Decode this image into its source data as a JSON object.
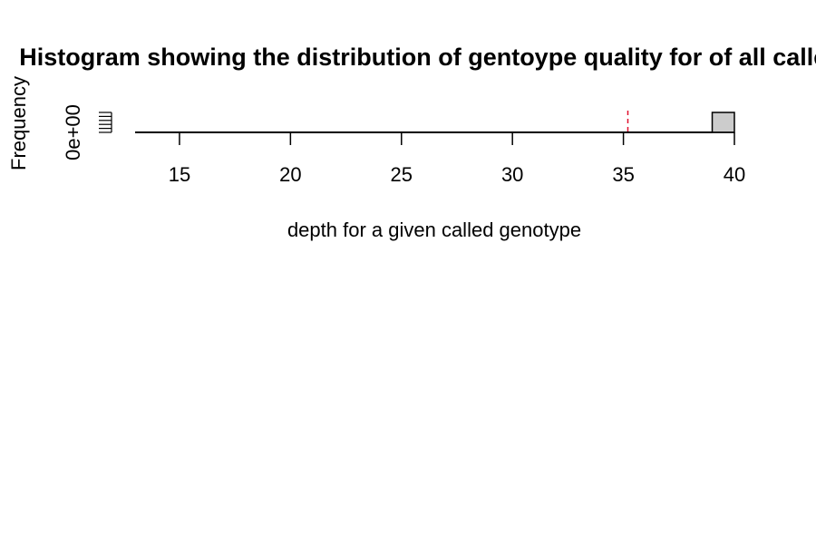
{
  "chart_data": {
    "type": "bar",
    "title": "Histogram showing the distribution of gentoype quality for of all called",
    "xlabel": "depth for a given called genotype",
    "ylabel": "Frequency",
    "xlim": [
      13,
      40
    ],
    "ylim": [
      0,
      1
    ],
    "x_ticks": [
      15,
      20,
      25,
      30,
      35,
      40
    ],
    "y_ticks": [
      "0e+00"
    ],
    "bins": [
      {
        "from": 13,
        "to": 39,
        "value": 0
      },
      {
        "from": 39,
        "to": 40,
        "value": 1
      }
    ],
    "vline": {
      "x": 35.2,
      "color": "#e0102e",
      "style": "dashed"
    },
    "bar_fill": "#cccccc",
    "grid": false
  }
}
